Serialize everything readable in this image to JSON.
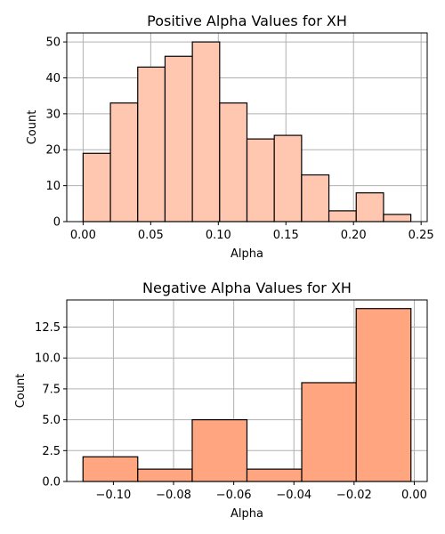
{
  "chart_data": [
    {
      "type": "bar",
      "title": "Positive Alpha Values for XH",
      "xlabel": "Alpha",
      "ylabel": "Count",
      "bin_edges": [
        0.0,
        0.0202,
        0.0404,
        0.0606,
        0.0808,
        0.101,
        0.1212,
        0.1414,
        0.1616,
        0.1818,
        0.202,
        0.2222,
        0.2424
      ],
      "values": [
        19,
        33,
        43,
        46,
        50,
        33,
        23,
        24,
        13,
        3,
        8,
        2
      ],
      "xlim": [
        -0.0121,
        0.2545
      ],
      "ylim": [
        0,
        52.5
      ],
      "xticks": [
        0.0,
        0.05,
        0.1,
        0.15,
        0.2,
        0.25
      ],
      "xtick_labels": [
        "0.00",
        "0.05",
        "0.10",
        "0.15",
        "0.20",
        "0.25"
      ],
      "yticks": [
        0,
        10,
        20,
        30,
        40,
        50
      ],
      "ytick_labels": [
        "0",
        "10",
        "20",
        "30",
        "40",
        "50"
      ],
      "grid": true,
      "color": "#ffc6b0"
    },
    {
      "type": "bar",
      "title": "Negative Alpha Values for XH",
      "xlabel": "Alpha",
      "ylabel": "Count",
      "bin_edges": [
        -0.1101,
        -0.0919,
        -0.0738,
        -0.0556,
        -0.0374,
        -0.0193,
        -0.0011
      ],
      "values": [
        2,
        1,
        5,
        1,
        8,
        14
      ],
      "xlim": [
        -0.1155,
        0.0043
      ],
      "ylim": [
        0,
        14.7
      ],
      "xticks": [
        -0.1,
        -0.08,
        -0.06,
        -0.04,
        -0.02,
        0.0
      ],
      "xtick_labels": [
        "−0.10",
        "−0.08",
        "−0.06",
        "−0.04",
        "−0.02",
        "0.00"
      ],
      "yticks": [
        0,
        2.5,
        5,
        7.5,
        10,
        12.5
      ],
      "ytick_labels": [
        "0.0",
        "2.5",
        "5.0",
        "7.5",
        "10.0",
        "12.5"
      ],
      "grid": true,
      "color": "#ffa580"
    }
  ]
}
